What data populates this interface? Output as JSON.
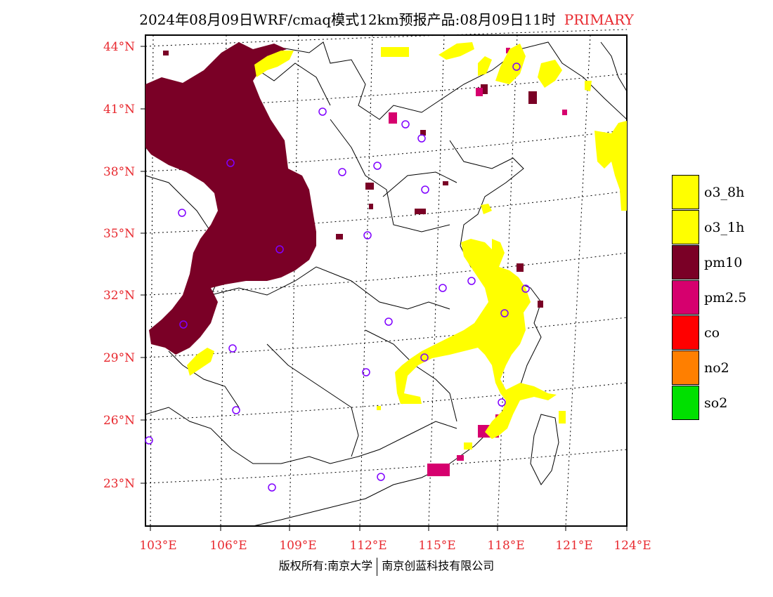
{
  "title": {
    "main": "2024年08月09日WRF/cmaq模式12km预报产品:08月09日11时",
    "tag": "PRIMARY"
  },
  "axes": {
    "lat_labels": [
      "44°N",
      "41°N",
      "38°N",
      "35°N",
      "32°N",
      "29°N",
      "26°N",
      "23°N"
    ],
    "lon_labels": [
      "103°E",
      "106°E",
      "109°E",
      "112°E",
      "115°E",
      "118°E",
      "121°E",
      "124°E"
    ]
  },
  "legend": {
    "items": [
      {
        "label": "o3_8h",
        "color": "#ffff00"
      },
      {
        "label": "o3_1h",
        "color": "#ffff00"
      },
      {
        "label": "pm10",
        "color": "#7a0026"
      },
      {
        "label": "pm2.5",
        "color": "#d6006e"
      },
      {
        "label": "co",
        "color": "#ff0000"
      },
      {
        "label": "no2",
        "color": "#ff7f00"
      },
      {
        "label": "so2",
        "color": "#00e000"
      }
    ]
  },
  "credit": {
    "left": "版权所有:南京大学",
    "right": "南京创蓝科技有限公司"
  }
}
